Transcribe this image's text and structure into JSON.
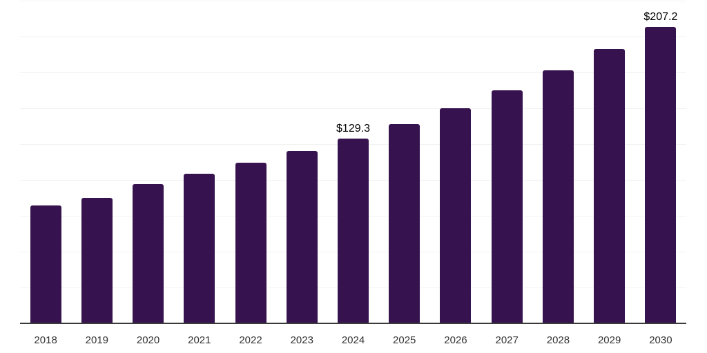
{
  "chart_data": {
    "type": "bar",
    "title": "",
    "xlabel": "",
    "ylabel": "",
    "categories": [
      "2018",
      "2019",
      "2020",
      "2021",
      "2022",
      "2023",
      "2024",
      "2025",
      "2026",
      "2027",
      "2028",
      "2029",
      "2030"
    ],
    "values": [
      82.9,
      88.0,
      97.6,
      105.0,
      112.3,
      120.5,
      129.3,
      139.2,
      150.7,
      163.2,
      176.9,
      191.6,
      207.2
    ],
    "data_labels": {
      "2024": "$129.3",
      "2030": "$207.2"
    },
    "ylim": [
      0,
      225
    ],
    "grid_step": 25,
    "grid": true,
    "legend": false,
    "y_tick_labels_visible": false,
    "bar_color": "#36134f",
    "axis_color": "#3a3a3a",
    "grid_color": "#f2f2f2",
    "tick_label_color": "#333333",
    "data_label_color": "#000000",
    "background_color": "#ffffff"
  }
}
